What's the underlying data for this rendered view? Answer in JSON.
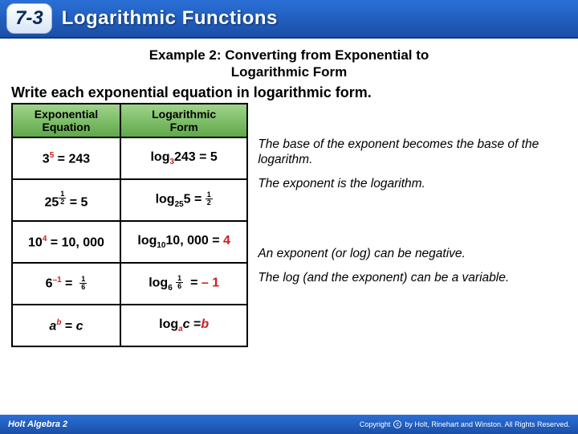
{
  "header": {
    "lesson_number": "7-3",
    "title": "Logarithmic Functions",
    "colors": {
      "bg_top": "#2a6fd6",
      "bg_bottom": "#1a4fa8",
      "text": "#ffffff"
    }
  },
  "example": {
    "title_line1": "Example 2: Converting from Exponential to",
    "title_line2": "Logarithmic Form",
    "instruction": "Write each exponential equation in logarithmic form."
  },
  "table": {
    "header_bg": "#7fb86a",
    "columns": [
      "Exponential Equation",
      "Logarithmic Form"
    ],
    "rows": [
      {
        "exp": {
          "base": "3",
          "exponent": "5",
          "result": "243",
          "exp_color": "#d11b1b"
        },
        "log": {
          "base": "3",
          "arg": "243",
          "val": "5",
          "base_color": "#d11b1b"
        }
      },
      {
        "exp": {
          "base": "25",
          "exponent_frac": {
            "n": "1",
            "d": "2"
          },
          "result": "5"
        },
        "log": {
          "base": "25",
          "arg": "5",
          "val_frac": {
            "n": "1",
            "d": "2"
          }
        }
      },
      {
        "exp": {
          "base": "10",
          "exponent": "4",
          "result": "10, 000",
          "exp_color": "#d11b1b"
        },
        "log": {
          "base": "10",
          "arg": "10, 000",
          "val": "4",
          "val_color": "#d11b1b"
        }
      },
      {
        "exp": {
          "base": "6",
          "exponent": "–1",
          "result_frac": {
            "n": "1",
            "d": "6"
          },
          "exp_color": "#d11b1b"
        },
        "log": {
          "base": "6",
          "arg_frac": {
            "n": "1",
            "d": "6"
          },
          "val": "– 1",
          "val_color": "#d11b1b"
        }
      },
      {
        "exp": {
          "base": "a",
          "exponent": "b",
          "result": "c",
          "italic": true,
          "exp_color": "#d11b1b"
        },
        "log": {
          "base": "a",
          "arg": "c",
          "val": "b",
          "italic": true,
          "base_color": "#d11b1b",
          "val_color": "#d11b1b"
        }
      }
    ]
  },
  "notes": [
    "The base of the exponent becomes the base of the logarithm.",
    "The exponent is the logarithm.",
    "An exponent (or log) can be negative.",
    "The log (and the exponent) can be a variable."
  ],
  "footer": {
    "brand": "Holt Algebra 2",
    "copyright": "Copyright © by Holt, Rinehart and Winston. All Rights Reserved."
  },
  "colors": {
    "red": "#d11b1b",
    "blue": "#1a4fa8"
  }
}
